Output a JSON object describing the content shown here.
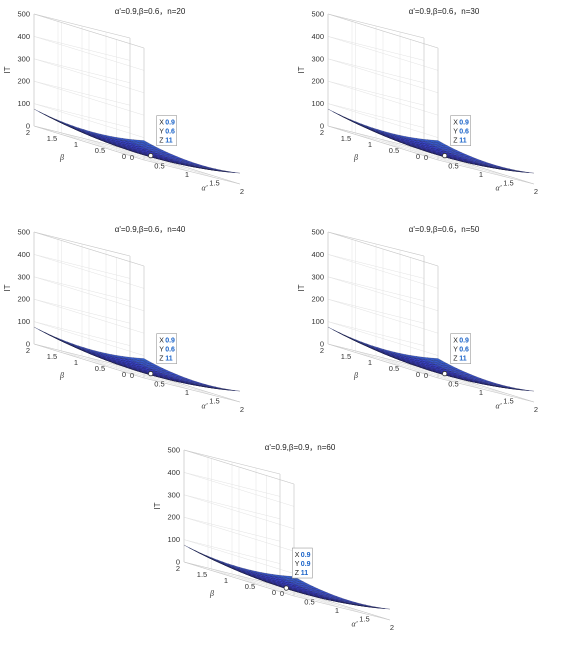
{
  "colors": {
    "low": "#3f39cf",
    "mid": "#1fa2cb",
    "teal": "#27c4a0",
    "green": "#7cc84a",
    "orange": "#f5a93c",
    "high": "#f7e934",
    "accent": "#1a63c8"
  },
  "axes": {
    "x_label": "α'",
    "y_label": "β",
    "z_label": "IT",
    "x_ticks": [
      "0",
      "0.5",
      "1",
      "1.5",
      "2"
    ],
    "y_ticks": [
      "2",
      "1.5",
      "1",
      "0.5",
      "0"
    ],
    "z_ticks": [
      "0",
      "100",
      "200",
      "300",
      "400",
      "500"
    ]
  },
  "chart_data": [
    {
      "type": "surface",
      "title": "α'=0.9,β=0.6，n=20",
      "n": 20,
      "xlabel": "α'",
      "ylabel": "β",
      "zlabel": "IT",
      "xlim": [
        0,
        2
      ],
      "ylim": [
        0,
        2
      ],
      "zlim": [
        0,
        500
      ],
      "datatip": {
        "x": "0.9",
        "y": "0.6",
        "z": "11"
      }
    },
    {
      "type": "surface",
      "title": "α'=0.9,β=0.6，n=30",
      "n": 30,
      "xlabel": "α'",
      "ylabel": "β",
      "zlabel": "IT",
      "xlim": [
        0,
        2
      ],
      "ylim": [
        0,
        2
      ],
      "zlim": [
        0,
        500
      ],
      "datatip": {
        "x": "0.9",
        "y": "0.6",
        "z": "11"
      }
    },
    {
      "type": "surface",
      "title": "α'=0.9,β=0.6，n=40",
      "n": 40,
      "xlabel": "α'",
      "ylabel": "β",
      "zlabel": "IT",
      "xlim": [
        0,
        2
      ],
      "ylim": [
        0,
        2
      ],
      "zlim": [
        0,
        500
      ],
      "datatip": {
        "x": "0.9",
        "y": "0.6",
        "z": "11"
      }
    },
    {
      "type": "surface",
      "title": "α'=0.9,β=0.6，n=50",
      "n": 50,
      "xlabel": "α'",
      "ylabel": "β",
      "zlabel": "IT",
      "xlim": [
        0,
        2
      ],
      "ylim": [
        0,
        2
      ],
      "zlim": [
        0,
        500
      ],
      "datatip": {
        "x": "0.9",
        "y": "0.6",
        "z": "11"
      }
    },
    {
      "type": "surface",
      "title": "α'=0.9,β=0.9，n=60",
      "n": 60,
      "xlabel": "α'",
      "ylabel": "β",
      "zlabel": "IT",
      "xlim": [
        0,
        2
      ],
      "ylim": [
        0,
        2
      ],
      "zlim": [
        0,
        500
      ],
      "datatip": {
        "x": "0.9",
        "y": "0.9",
        "z": "11"
      }
    }
  ]
}
